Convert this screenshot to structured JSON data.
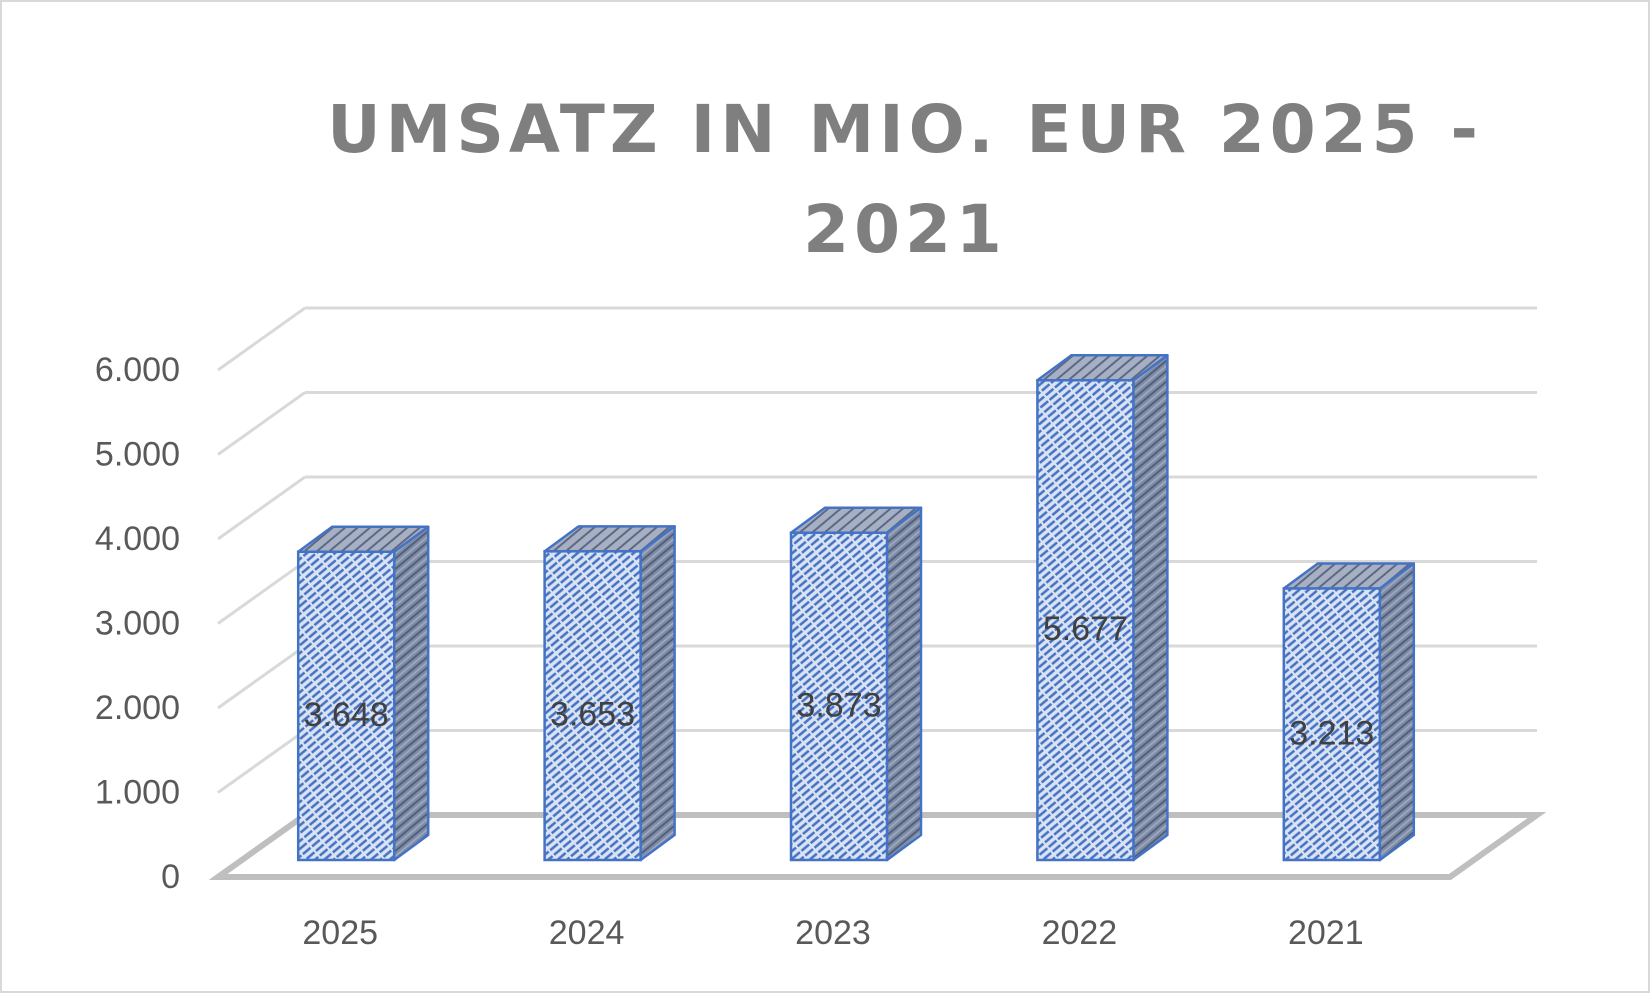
{
  "chart_data": {
    "type": "bar",
    "three_d": true,
    "title": "UMSATZ IN MIO. EUR 2025 - 2021",
    "categories": [
      "2025",
      "2024",
      "2023",
      "2022",
      "2021"
    ],
    "series": [
      {
        "values": [
          3648,
          3653,
          3873,
          5677,
          3213
        ],
        "data_labels": [
          "3.648",
          "3.653",
          "3.873",
          "5.677",
          "3.213"
        ]
      }
    ],
    "ylim": [
      0,
      6000
    ],
    "yticks": [
      0,
      1000,
      2000,
      3000,
      4000,
      5000,
      6000
    ],
    "ytick_labels": [
      "0",
      "1.000",
      "2.000",
      "3.000",
      "4.000",
      "5.000",
      "6.000"
    ],
    "xlabel": "",
    "ylabel": "",
    "grid": true,
    "legend": "none",
    "colors": {
      "bar_front": "#dae3f3",
      "bar_hatch": "#4472c4",
      "bar_side": "#7f8ca6",
      "bar_top": "#9aa5bb",
      "bar_edge": "#4472c4",
      "grid": "#d9d9d9",
      "floor": "#bfbfbf",
      "title": "#7f7f7f",
      "axis_text": "#595959"
    }
  }
}
